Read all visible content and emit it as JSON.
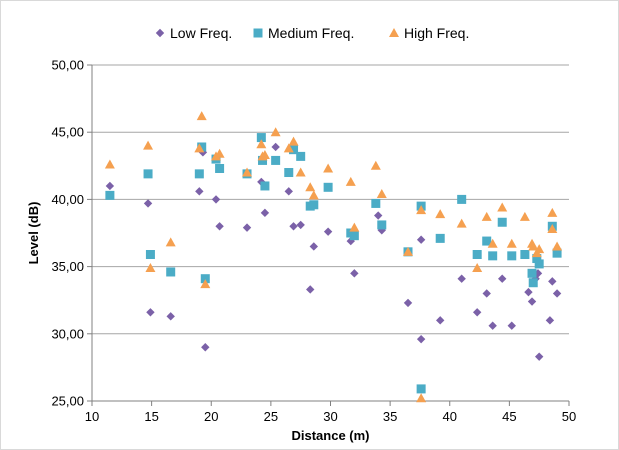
{
  "chart_data": {
    "type": "scatter",
    "xlabel": "Distance (m)",
    "ylabel": "Level (dB)",
    "xlim": [
      10,
      50
    ],
    "ylim": [
      25,
      50
    ],
    "x_ticks": [
      "10",
      "15",
      "20",
      "25",
      "30",
      "35",
      "40",
      "45",
      "50"
    ],
    "y_ticks": [
      "25,00",
      "30,00",
      "35,00",
      "40,00",
      "45,00",
      "50,00"
    ],
    "x_tick_values": [
      10,
      15,
      20,
      25,
      30,
      35,
      40,
      45,
      50
    ],
    "y_tick_values": [
      25,
      30,
      35,
      40,
      45,
      50
    ],
    "grid": "horizontal",
    "legend_position": "top",
    "series": [
      {
        "name": "Low Freq.",
        "marker": "diamond",
        "color": "#7B61A8",
        "points": [
          [
            11.5,
            41.0
          ],
          [
            14.7,
            39.7
          ],
          [
            14.9,
            31.6
          ],
          [
            16.6,
            31.3
          ],
          [
            19.0,
            40.6
          ],
          [
            19.3,
            43.5
          ],
          [
            19.5,
            29.0
          ],
          [
            20.4,
            40.0
          ],
          [
            20.7,
            38.0
          ],
          [
            23.0,
            37.9
          ],
          [
            24.2,
            41.3
          ],
          [
            24.5,
            39.0
          ],
          [
            25.4,
            43.9
          ],
          [
            26.5,
            40.6
          ],
          [
            26.9,
            38.0
          ],
          [
            27.5,
            38.1
          ],
          [
            28.3,
            33.3
          ],
          [
            28.6,
            36.5
          ],
          [
            29.8,
            37.6
          ],
          [
            31.7,
            36.9
          ],
          [
            32.0,
            34.5
          ],
          [
            34.0,
            38.8
          ],
          [
            34.3,
            37.7
          ],
          [
            36.5,
            32.3
          ],
          [
            37.6,
            29.6
          ],
          [
            37.6,
            37.0
          ],
          [
            39.2,
            31.0
          ],
          [
            41.0,
            34.1
          ],
          [
            42.3,
            31.6
          ],
          [
            43.1,
            33.0
          ],
          [
            43.6,
            30.6
          ],
          [
            44.4,
            34.1
          ],
          [
            45.2,
            30.6
          ],
          [
            46.6,
            33.1
          ],
          [
            46.9,
            32.4
          ],
          [
            47.2,
            34.1
          ],
          [
            47.4,
            34.5
          ],
          [
            47.5,
            28.3
          ],
          [
            48.4,
            31.0
          ],
          [
            48.6,
            33.9
          ],
          [
            49.0,
            33.0
          ]
        ]
      },
      {
        "name": "Medium Freq.",
        "marker": "square",
        "color": "#4BACC6",
        "points": [
          [
            11.5,
            40.3
          ],
          [
            14.7,
            41.9
          ],
          [
            14.9,
            35.9
          ],
          [
            16.6,
            34.6
          ],
          [
            19.0,
            41.9
          ],
          [
            19.2,
            43.9
          ],
          [
            19.5,
            34.1
          ],
          [
            20.4,
            43.0
          ],
          [
            20.7,
            42.3
          ],
          [
            23.0,
            41.9
          ],
          [
            24.2,
            44.6
          ],
          [
            24.3,
            42.9
          ],
          [
            24.5,
            41.0
          ],
          [
            25.4,
            42.9
          ],
          [
            26.5,
            42.0
          ],
          [
            26.9,
            43.7
          ],
          [
            27.5,
            43.2
          ],
          [
            28.3,
            39.5
          ],
          [
            28.6,
            39.6
          ],
          [
            29.8,
            40.9
          ],
          [
            31.7,
            37.5
          ],
          [
            32.0,
            37.3
          ],
          [
            33.8,
            39.7
          ],
          [
            34.3,
            38.1
          ],
          [
            36.5,
            36.1
          ],
          [
            37.6,
            39.5
          ],
          [
            37.6,
            25.9
          ],
          [
            39.2,
            37.1
          ],
          [
            41.0,
            40.0
          ],
          [
            42.3,
            35.9
          ],
          [
            43.1,
            36.9
          ],
          [
            43.6,
            35.8
          ],
          [
            44.4,
            38.3
          ],
          [
            45.2,
            35.8
          ],
          [
            46.3,
            35.9
          ],
          [
            46.9,
            34.5
          ],
          [
            47.0,
            33.8
          ],
          [
            47.3,
            35.6
          ],
          [
            47.5,
            35.2
          ],
          [
            48.6,
            38.0
          ],
          [
            49.0,
            36.0
          ]
        ]
      },
      {
        "name": "High Freq.",
        "marker": "triangle",
        "color": "#F5A050",
        "points": [
          [
            11.5,
            42.6
          ],
          [
            14.7,
            44.0
          ],
          [
            14.9,
            34.9
          ],
          [
            16.6,
            36.8
          ],
          [
            19.0,
            43.8
          ],
          [
            19.2,
            46.2
          ],
          [
            19.5,
            33.7
          ],
          [
            20.4,
            43.2
          ],
          [
            20.7,
            43.4
          ],
          [
            23.0,
            42.0
          ],
          [
            24.2,
            44.1
          ],
          [
            24.3,
            43.2
          ],
          [
            24.5,
            43.3
          ],
          [
            25.4,
            45.0
          ],
          [
            26.5,
            43.8
          ],
          [
            26.9,
            44.3
          ],
          [
            27.5,
            42.0
          ],
          [
            28.3,
            40.9
          ],
          [
            28.6,
            40.3
          ],
          [
            29.8,
            42.3
          ],
          [
            31.7,
            41.3
          ],
          [
            32.0,
            37.9
          ],
          [
            33.8,
            42.5
          ],
          [
            34.3,
            40.4
          ],
          [
            36.5,
            36.1
          ],
          [
            37.6,
            39.2
          ],
          [
            37.6,
            25.2
          ],
          [
            39.2,
            38.9
          ],
          [
            41.0,
            38.2
          ],
          [
            42.3,
            34.9
          ],
          [
            43.1,
            38.7
          ],
          [
            43.6,
            36.7
          ],
          [
            44.4,
            39.4
          ],
          [
            45.2,
            36.7
          ],
          [
            46.3,
            38.7
          ],
          [
            46.9,
            36.7
          ],
          [
            47.0,
            36.5
          ],
          [
            47.3,
            36.0
          ],
          [
            47.5,
            36.3
          ],
          [
            48.6,
            39.0
          ],
          [
            48.6,
            37.8
          ],
          [
            49.0,
            36.5
          ]
        ]
      }
    ]
  }
}
